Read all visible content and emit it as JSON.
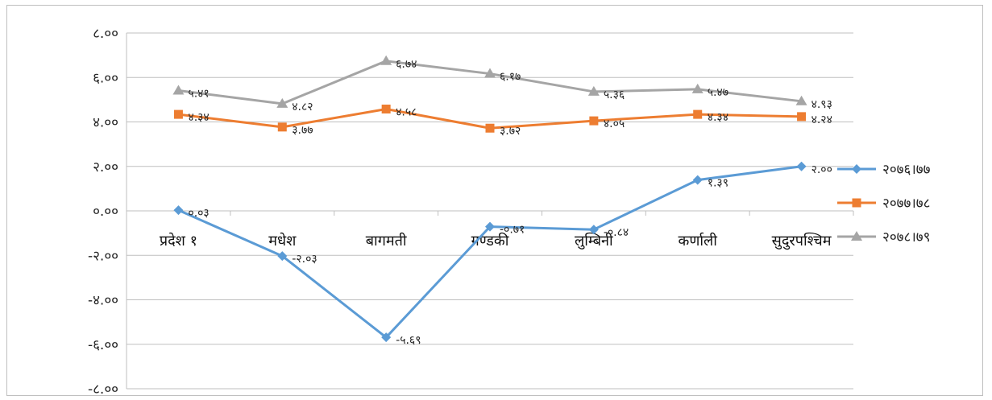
{
  "chart_data": {
    "type": "line",
    "categories": [
      "प्रदेश १",
      "मधेश",
      "बागमती",
      "गण्डकी",
      "लुम्बिनी",
      "कर्णाली",
      "सुदुरपश्चिम"
    ],
    "series": [
      {
        "name": "२०७६।७७",
        "color": "#5b9bd5",
        "marker": "diamond",
        "values": [
          0.03,
          -2.03,
          -5.69,
          -0.71,
          -0.84,
          1.39,
          2.0
        ],
        "labels": [
          "०.०३",
          "-२.०३",
          "-५.६९",
          "-०.७१",
          "-०.८४",
          "१.३९",
          "२.००"
        ]
      },
      {
        "name": "२०७७।७८",
        "color": "#ed7d31",
        "marker": "square",
        "values": [
          4.34,
          3.77,
          4.58,
          3.72,
          4.05,
          4.34,
          4.24
        ],
        "labels": [
          "४.३४",
          "३.७७",
          "४.५८",
          "३.७२",
          "४.०५",
          "४.३४",
          "४.२४"
        ]
      },
      {
        "name": "२०७८।७९",
        "color": "#a5a5a5",
        "marker": "triangle",
        "values": [
          5.41,
          4.82,
          6.74,
          6.17,
          5.36,
          5.47,
          4.93
        ],
        "labels": [
          "५.४१",
          "४.८२",
          "६.७४",
          "६.१७",
          "५.३६",
          "५.४७",
          "४.९३"
        ]
      }
    ],
    "ylim": [
      -8,
      8
    ],
    "yticks": [
      8,
      6,
      4,
      2,
      0,
      -2,
      -4,
      -6,
      -8
    ],
    "ytick_labels": [
      "८.००",
      "६.००",
      "४.००",
      "२.००",
      "०.००",
      "-२.००",
      "-४.००",
      "-६.००",
      "-८.००"
    ],
    "grid": true,
    "legend_position": "right",
    "title": "",
    "xlabel": "",
    "ylabel": ""
  }
}
